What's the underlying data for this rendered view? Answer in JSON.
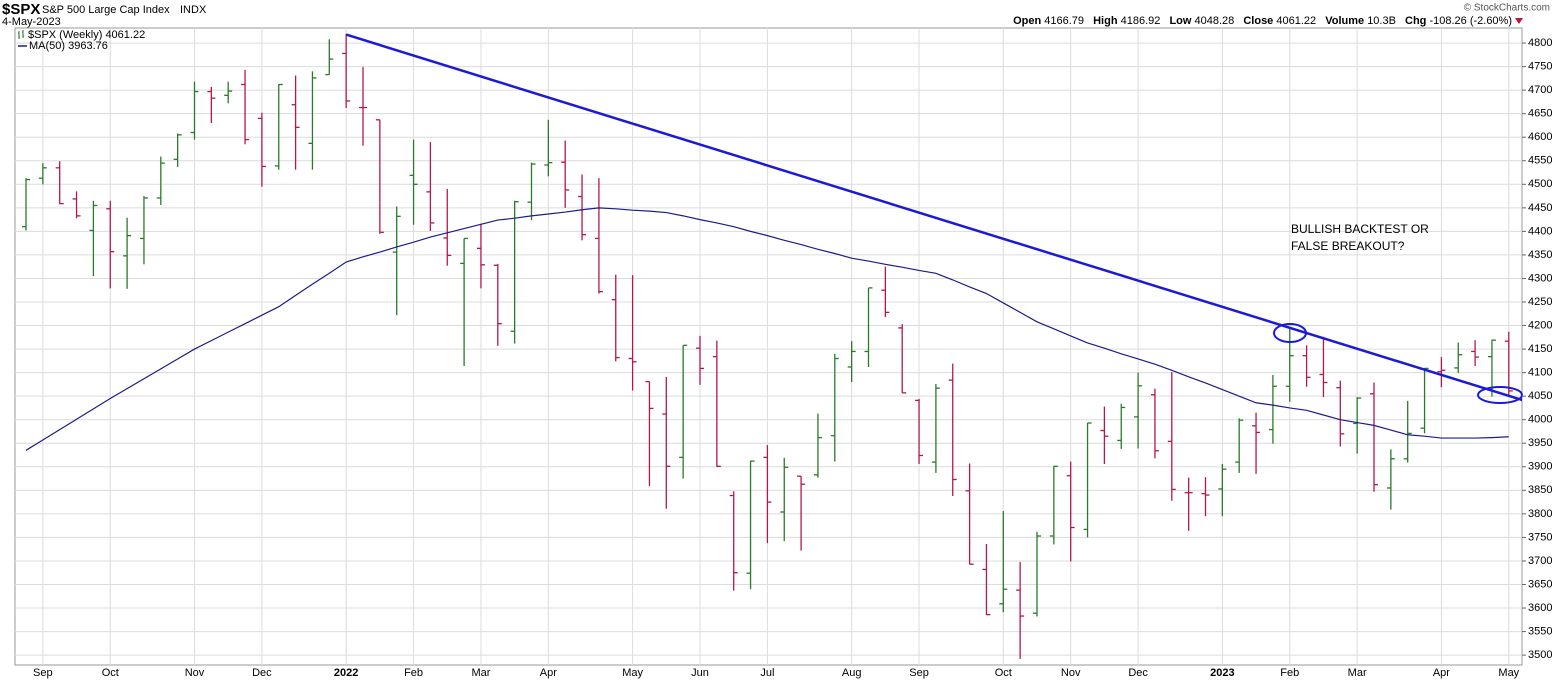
{
  "header": {
    "symbol": "$SPX",
    "name": "S&P 500 Large Cap Index",
    "exchange": "INDX",
    "date": "4-May-2023",
    "watermark": "© StockCharts.com"
  },
  "quote": {
    "open_label": "Open",
    "high_label": "High",
    "low_label": "Low",
    "close_label": "Close",
    "volume_label": "Volume",
    "volume": "10.3B",
    "change_label": "Chg",
    "change": "-108.26 (-2.60%)"
  },
  "chart_data": {
    "type": "ohlc",
    "price_name": "$SPX (Weekly)",
    "up_color": "#2a7a2a",
    "down_color": "#b5164f",
    "categories": [
      null,
      "Sep",
      null,
      null,
      null,
      "Oct",
      null,
      null,
      null,
      null,
      "Nov",
      null,
      null,
      null,
      "Dec",
      null,
      null,
      null,
      null,
      "2022",
      null,
      null,
      null,
      "Feb",
      null,
      null,
      null,
      "Mar",
      null,
      null,
      null,
      "Apr",
      null,
      null,
      null,
      null,
      "May",
      null,
      null,
      null,
      "Jun",
      null,
      null,
      null,
      "Jul",
      null,
      null,
      null,
      null,
      "Aug",
      null,
      null,
      null,
      "Sep",
      null,
      null,
      null,
      null,
      "Oct",
      null,
      null,
      null,
      "Nov",
      null,
      null,
      null,
      "Dec",
      null,
      null,
      null,
      null,
      "2023",
      null,
      null,
      null,
      "Feb",
      null,
      null,
      null,
      "Mar",
      null,
      null,
      null,
      null,
      "Apr",
      null,
      null,
      null,
      "May"
    ],
    "open": [
      4410,
      4513,
      4535,
      4469,
      4402,
      4448,
      4348,
      4385,
      4471,
      4553,
      4610,
      4697,
      4689,
      4712,
      4640,
      4539,
      4669,
      4587,
      4733,
      4778,
      4663,
      4637,
      4356,
      4519,
      4484,
      4386,
      4332,
      4364,
      4328,
      4188,
      4462,
      4541,
      4547,
      4474,
      4385,
      4255,
      4130,
      4081,
      4012,
      3920,
      4152,
      4134,
      3839,
      3674,
      3920,
      3804,
      3880,
      3883,
      3966,
      4112,
      4145,
      4275,
      4195,
      4041,
      3910,
      4084,
      3849,
      3682,
      3609,
      3638,
      3589,
      3753,
      3881,
      3767,
      3977,
      3956,
      4006,
      4053,
      3954,
      3845,
      3843,
      3853,
      3910,
      3987,
      3979,
      4071,
      4136,
      4096,
      4068,
      3992,
      4055,
      3855,
      3917,
      3982,
      4102,
      4110,
      4145,
      4134,
      4166.79
    ],
    "high": [
      4513,
      4545,
      4549,
      4485,
      4465,
      4465,
      4429,
      4475,
      4559,
      4608,
      4718,
      4707,
      4718,
      4743,
      4652,
      4713,
      4731,
      4740,
      4808,
      4819,
      4749,
      4637,
      4453,
      4595,
      4590,
      4490,
      4385,
      4416,
      4331,
      4465,
      4546,
      4637,
      4593,
      4521,
      4513,
      4308,
      4307,
      4081,
      4091,
      4158,
      4178,
      4168,
      3848,
      3913,
      3946,
      3919,
      3880,
      4013,
      4140,
      4167,
      4280,
      4325,
      4203,
      4044,
      4076,
      4119,
      3907,
      3736,
      3806,
      3698,
      3762,
      3902,
      3911,
      3993,
      4028,
      4034,
      4100,
      4066,
      4101,
      3877,
      3878,
      3906,
      4003,
      4015,
      4095,
      4195,
      4158,
      4176,
      4083,
      4048,
      4079,
      3937,
      4040,
      4110,
      4133,
      4164,
      4169,
      4170,
      4186.92
    ],
    "low": [
      4402,
      4500,
      4458,
      4428,
      4305,
      4279,
      4278,
      4330,
      4456,
      4537,
      4595,
      4630,
      4672,
      4585,
      4495,
      4531,
      4531,
      4531,
      4733,
      4662,
      4582,
      4395,
      4222,
      4414,
      4401,
      4327,
      4114,
      4279,
      4157,
      4162,
      4424,
      4517,
      4450,
      4381,
      4268,
      4124,
      4062,
      3859,
      3811,
      3875,
      4074,
      3900,
      3637,
      3640,
      3738,
      3742,
      3722,
      3877,
      3911,
      4080,
      4112,
      4218,
      4057,
      3906,
      3887,
      3838,
      3693,
      3585,
      3591,
      3492,
      3582,
      3735,
      3699,
      3750,
      3906,
      3938,
      3939,
      3918,
      3828,
      3764,
      3795,
      3795,
      3887,
      3885,
      3949,
      4038,
      4070,
      4048,
      3943,
      3928,
      3847,
      3809,
      3909,
      3971,
      4069,
      4099,
      4114,
      4049,
      4048.28
    ],
    "close": [
      4510,
      4535,
      4459,
      4433,
      4455,
      4357,
      4391,
      4471,
      4545,
      4605,
      4697,
      4683,
      4698,
      4595,
      4538,
      4712,
      4621,
      4726,
      4766,
      4677,
      4663,
      4398,
      4432,
      4500,
      4418,
      4349,
      4385,
      4329,
      4204,
      4463,
      4543,
      4546,
      4488,
      4393,
      4272,
      4132,
      4123,
      4024,
      3901,
      4158,
      4109,
      3901,
      3675,
      3912,
      3825,
      3899,
      3863,
      3962,
      4130,
      4145,
      4280,
      4228,
      4057,
      3924,
      4067,
      3873,
      3693,
      3586,
      3640,
      3583,
      3753,
      3901,
      3771,
      3993,
      3965,
      4026,
      4072,
      3934,
      3852,
      3845,
      3840,
      3895,
      3999,
      3973,
      4071,
      4136,
      4090,
      4079,
      3970,
      4046,
      3862,
      3917,
      3971,
      4109,
      4105,
      4138,
      4133,
      4169,
      4061.22
    ],
    "ma": {
      "name": "MA(50)",
      "color": "#1c1c8a",
      "values": [
        3935,
        3957,
        3979,
        4001,
        4023,
        4045,
        4066,
        4087,
        4108,
        4129,
        4150,
        4168,
        4186,
        4204,
        4222,
        4240,
        4264,
        4288,
        4311,
        4335,
        4346,
        4356,
        4367,
        4377,
        4388,
        4397,
        4406,
        4415,
        4424,
        4428,
        4433,
        4437,
        4441,
        4446,
        4450,
        4448,
        4445,
        4443,
        4440,
        4433,
        4425,
        4418,
        4410,
        4400,
        4391,
        4381,
        4372,
        4362,
        4353,
        4343,
        4337,
        4330,
        4324,
        4317,
        4311,
        4297,
        4282,
        4268,
        4248,
        4228,
        4208,
        4193,
        4178,
        4163,
        4152,
        4140,
        4129,
        4118,
        4105,
        4091,
        4078,
        4064,
        4050,
        4036,
        4031,
        4025,
        4020,
        4010,
        4000,
        3994,
        3988,
        3978,
        3968,
        3965,
        3961,
        3961,
        3961,
        3962,
        3963.76
      ]
    },
    "trendline": {
      "color": "#1a1ad8",
      "x": [
        19,
        91.3
      ],
      "y": [
        4818,
        4014
      ]
    },
    "annotation": {
      "color": "#1a1ad8",
      "lines": [
        "BULLISH BACKTEST OR",
        "FALSE BREAKOUT?"
      ]
    },
    "ylim": [
      3479,
      4832
    ],
    "yticks": [
      3500,
      3550,
      3600,
      3650,
      3700,
      3750,
      3800,
      3850,
      3900,
      3950,
      4000,
      4050,
      4100,
      4150,
      4200,
      4250,
      4300,
      4350,
      4400,
      4450,
      4500,
      4550,
      4600,
      4650,
      4700,
      4750,
      4800
    ],
    "grid": true
  }
}
